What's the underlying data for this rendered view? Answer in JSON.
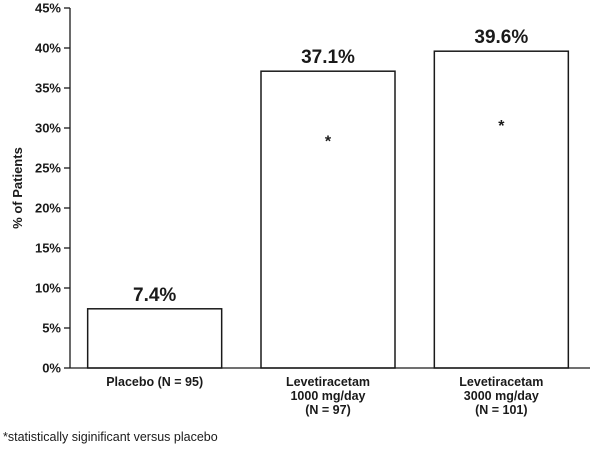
{
  "chart_data": {
    "type": "bar",
    "categories": [
      [
        "Placebo (N = 95)"
      ],
      [
        "Levetiracetam",
        "1000 mg/day",
        "(N = 97)"
      ],
      [
        "Levetiracetam",
        "3000 mg/day",
        "(N = 101)"
      ]
    ],
    "values": [
      7.4,
      37.1,
      39.6
    ],
    "value_labels": [
      "7.4%",
      "37.1%",
      "39.6%"
    ],
    "significance_markers": [
      "",
      "*",
      "*"
    ],
    "ylabel": "% of Patients",
    "xlabel": "",
    "ylim": [
      0,
      45
    ],
    "yticks": [
      0,
      5,
      10,
      15,
      20,
      25,
      30,
      35,
      40,
      45
    ],
    "ytick_labels": [
      "0%",
      "5%",
      "10%",
      "15%",
      "20%",
      "25%",
      "30%",
      "35%",
      "40%",
      "45%"
    ],
    "grid": false,
    "legend": "none",
    "bar_fill": "#ffffff",
    "bar_stroke": "#1a1a1a"
  },
  "footnote": "*statistically siginificant versus placebo"
}
